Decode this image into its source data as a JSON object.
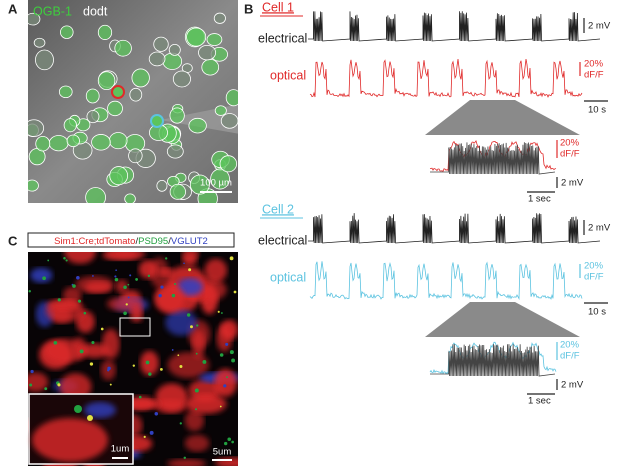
{
  "panel_a": {
    "label": "A",
    "stain": "OGB-1",
    "stain_color": "#3ecf3e",
    "channel": "dodt",
    "scale_bar": "100 µm"
  },
  "panel_b": {
    "label": "B",
    "cells": [
      {
        "name": "Cell 1",
        "color": "#e02a2a",
        "electrical": "electrical",
        "optical": "optical",
        "scale_mv": "2 mV",
        "scale_dff": "20%",
        "scale_dff_unit": "dF/F",
        "scale_time": "10 s",
        "inset": {
          "scale_dff": "20%",
          "scale_dff_unit": "dF/F",
          "scale_mv": "2 mV",
          "scale_time": "1 sec"
        }
      },
      {
        "name": "Cell 2",
        "color": "#5cc3e0",
        "electrical": "electrical",
        "optical": "optical",
        "scale_mv": "2 mV",
        "scale_dff": "20%",
        "scale_dff_unit": "dF/F",
        "scale_time": "10 s",
        "inset": {
          "scale_dff": "20%",
          "scale_dff_unit": "dF/F",
          "scale_mv": "2 mV",
          "scale_time": "1 sec"
        }
      }
    ]
  },
  "panel_c": {
    "label": "C",
    "legend": [
      {
        "text": "Sim1:Cre;tdTomato",
        "color": "#e02a2a"
      },
      {
        "text": "/",
        "color": "#222222"
      },
      {
        "text": "PSD95",
        "color": "#22a040"
      },
      {
        "text": "/",
        "color": "#222222"
      },
      {
        "text": "VGLUT2",
        "color": "#3040c0"
      }
    ],
    "inset_scale": "1um",
    "scale_bar": "5um"
  }
}
